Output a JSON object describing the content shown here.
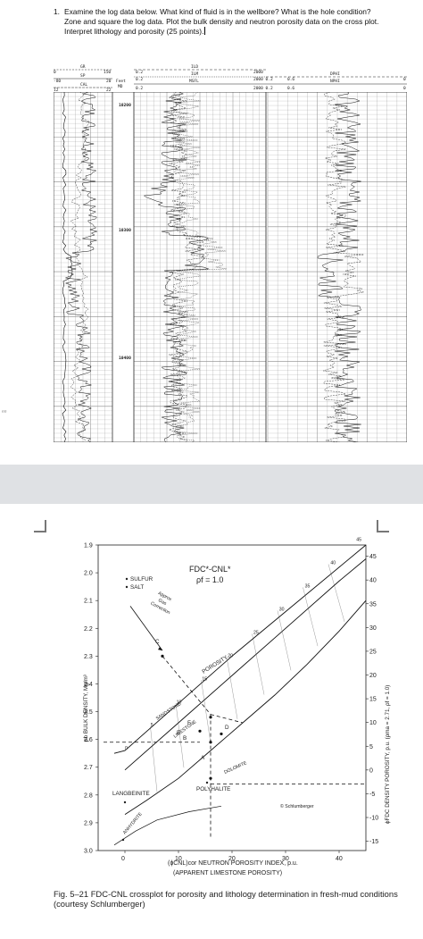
{
  "question": {
    "number": "1.",
    "line1": "Examine the log data below.  What kind of fluid is in the wellbore? What is the hole condition?",
    "line2": "Zone and square the log data.   Plot the bulk density and neutron porosity data on the cross plot.",
    "line3": "Interpret lithology and porosity (25 points)."
  },
  "log_header": {
    "gr": "GR",
    "sp": "SP",
    "cal": "CAL",
    "gr_min": "0",
    "gr_max": "150",
    "sp_min": "-80",
    "sp_max": "20",
    "cal_min": "12",
    "cal_max": "22",
    "feet": "Feet",
    "md": "MD",
    "ild": "ILD",
    "ilm": "ILM",
    "msfl": "MSFL",
    "res_min": "0.2",
    "res_max": "2000",
    "res_max2": "2000 0.2",
    "dphi": "DPHI",
    "nphi": "NPHI",
    "por_left": "0.6",
    "por_right": "0"
  },
  "depths": [
    "10200",
    "10300",
    "10400"
  ],
  "side_mark": "ee",
  "crossplot": {
    "title": "FDC*-CNL*",
    "fluid": "ρf = 1.0",
    "y_axis_label": "ρb BULK DENSITY, Mg/m³",
    "y_ticks": [
      "1.9",
      "2.0",
      "2.1",
      "2.2",
      "2.3",
      "2.4",
      "2.5",
      "2.6",
      "2.7",
      "2.8",
      "2.9",
      "3.0"
    ],
    "x_ticks": [
      "0",
      "10",
      "20",
      "30",
      "40"
    ],
    "x_label_1": "(ϕCNL)cor NEUTRON POROSITY INDEX, p.u.",
    "x_label_2": "(APPARENT LIMESTONE POROSITY)",
    "right_ticks": [
      "45",
      "40",
      "35",
      "30",
      "25",
      "20",
      "15",
      "10",
      "5",
      "0",
      "-5",
      "-10",
      "-15"
    ],
    "right_label": "ϕFDC DENSITY POROSITY, p.u. (ρma = 2.71, ρf = 1.0)",
    "labels": {
      "sulfur": "SULFUR",
      "salt": "SALT",
      "gas1": "Approx",
      "gas2": "Gas",
      "gas3": "Correction",
      "porosity": "POROSITY",
      "sandstone": "SANDSTONE",
      "limestone": "LIMESTONE",
      "dolomite": "DOLOMITE",
      "langbeinite": "LANGBEINITE",
      "polyhalite": "POLYHALITE",
      "anhydrite": "ANHYDRITE",
      "schlumberger": "© Schlumberger",
      "pA": "A",
      "pB": "B",
      "pC": "C",
      "pD": "D",
      "pE": "E",
      "pF": "F"
    },
    "curve_numbers": [
      "0",
      "5",
      "10",
      "15",
      "20",
      "25",
      "30",
      "35",
      "40",
      "45"
    ]
  },
  "caption": "Fig. 5–21 FDC-CNL crossplot for porosity and lithology determination in fresh-mud conditions (courtesy Schlumberger)"
}
